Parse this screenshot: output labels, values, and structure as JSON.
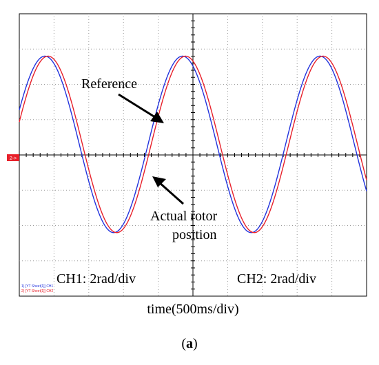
{
  "chart_data": {
    "type": "line",
    "title": "",
    "xlabel": "time(500ms/div)",
    "ylabel": "",
    "x_divisions": 10,
    "y_divisions": 8,
    "seconds_per_div": 0.5,
    "rad_per_div": 2,
    "xlim": [
      0,
      5
    ],
    "ylim": [
      -8,
      8
    ],
    "grid": true,
    "series": [
      {
        "name": "1) [YT Sheet[1]] CH1",
        "color": "#2233dd",
        "amplitude": 5,
        "period": 1.98,
        "phase": 0.0,
        "offset": 0.6,
        "scale_label": "CH1: 2rad/div"
      },
      {
        "name": "2) [YT Sheet[1]] CH2",
        "color": "#e8202a",
        "amplitude": 5,
        "period": 1.98,
        "phase": 0.045,
        "offset": 0.6,
        "scale_label": "CH2: 2rad/div"
      }
    ],
    "annotations": {
      "reference": "Reference",
      "actual_line1": "Actual rotor",
      "actual_line2": "position"
    },
    "marker_label": "2->"
  },
  "caption": {
    "open": "(",
    "letter": "a",
    "close": ")"
  }
}
